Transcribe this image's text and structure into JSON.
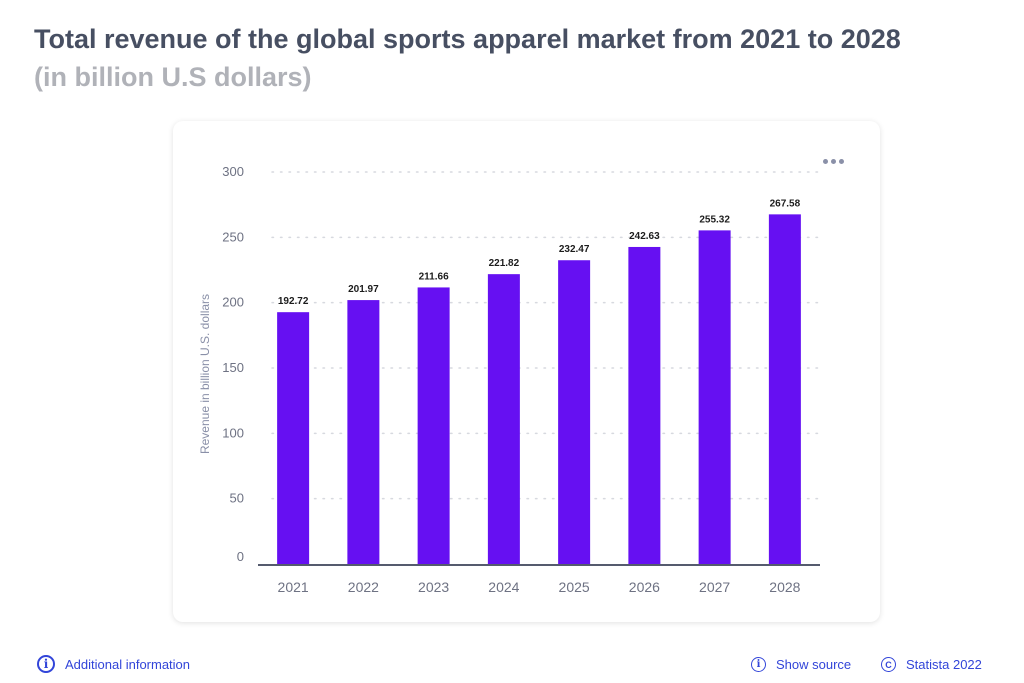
{
  "header": {
    "title": "Total revenue of the global sports apparel market from 2021 to 2028",
    "subtitle": "(in billion U.S dollars)"
  },
  "colors": {
    "bar": "#6610f2",
    "grid": "#d7d9df",
    "axis": "#555b6e",
    "link": "#3245d9"
  },
  "chart_data": {
    "type": "bar",
    "title": "Total revenue of the global sports apparel market from 2021 to 2028",
    "subtitle": "(in billion U.S dollars)",
    "xlabel": "",
    "ylabel": "Revenue in billion U.S. dollars",
    "categories": [
      "2021",
      "2022",
      "2023",
      "2024",
      "2025",
      "2026",
      "2027",
      "2028"
    ],
    "values": [
      192.72,
      201.97,
      211.66,
      221.82,
      232.47,
      242.63,
      255.32,
      267.58
    ],
    "value_labels": [
      "192.72",
      "201.97",
      "211.66",
      "221.82",
      "232.47",
      "242.63",
      "255.32",
      "267.58"
    ],
    "yticks": [
      0,
      50,
      100,
      150,
      200,
      250,
      300
    ],
    "ylim": [
      0,
      300
    ],
    "grid": true,
    "legend": "none"
  },
  "chart_menu": {
    "icon": "more-horizontal-icon"
  },
  "footer": {
    "additional_info": "Additional information",
    "show_source": "Show source",
    "copyright": "Statista 2022"
  }
}
